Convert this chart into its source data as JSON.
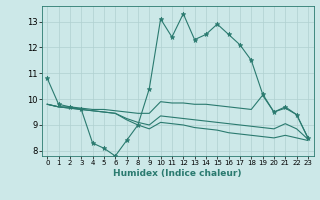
{
  "xlabel": "Humidex (Indice chaleur)",
  "ylabel": "",
  "bg_color": "#cce8e8",
  "line_color": "#2a7a6f",
  "grid_color": "#b0d0d0",
  "xlim": [
    -0.5,
    23.5
  ],
  "ylim": [
    7.8,
    13.6
  ],
  "yticks": [
    8,
    9,
    10,
    11,
    12,
    13
  ],
  "xticks": [
    0,
    1,
    2,
    3,
    4,
    5,
    6,
    7,
    8,
    9,
    10,
    11,
    12,
    13,
    14,
    15,
    16,
    17,
    18,
    19,
    20,
    21,
    22,
    23
  ],
  "lines": [
    {
      "x": [
        0,
        1,
        2,
        3,
        4,
        5,
        6,
        7,
        8,
        9,
        10,
        11,
        12,
        13,
        14,
        15,
        16,
        17,
        18,
        19,
        20,
        21,
        22,
        23
      ],
      "y": [
        10.8,
        9.8,
        9.7,
        9.6,
        8.3,
        8.1,
        7.8,
        8.4,
        9.0,
        10.4,
        13.1,
        12.4,
        13.3,
        12.3,
        12.5,
        12.9,
        12.5,
        12.1,
        11.5,
        10.2,
        9.5,
        9.7,
        9.4,
        8.5
      ],
      "marker": true
    },
    {
      "x": [
        0,
        1,
        2,
        3,
        4,
        5,
        6,
        7,
        8,
        9,
        10,
        11,
        12,
        13,
        14,
        15,
        16,
        17,
        18,
        19,
        20,
        21,
        22,
        23
      ],
      "y": [
        9.8,
        9.7,
        9.7,
        9.65,
        9.6,
        9.6,
        9.55,
        9.5,
        9.45,
        9.45,
        9.9,
        9.85,
        9.85,
        9.8,
        9.8,
        9.75,
        9.7,
        9.65,
        9.6,
        10.15,
        9.5,
        9.65,
        9.4,
        8.5
      ],
      "marker": false
    },
    {
      "x": [
        0,
        1,
        2,
        3,
        4,
        5,
        6,
        7,
        8,
        9,
        10,
        11,
        12,
        13,
        14,
        15,
        16,
        17,
        18,
        19,
        20,
        21,
        22,
        23
      ],
      "y": [
        9.8,
        9.7,
        9.65,
        9.6,
        9.55,
        9.5,
        9.45,
        9.25,
        9.1,
        9.0,
        9.35,
        9.3,
        9.25,
        9.2,
        9.15,
        9.1,
        9.05,
        9.0,
        8.95,
        8.9,
        8.85,
        9.05,
        8.85,
        8.45
      ],
      "marker": false
    },
    {
      "x": [
        0,
        1,
        2,
        3,
        4,
        5,
        6,
        7,
        8,
        9,
        10,
        11,
        12,
        13,
        14,
        15,
        16,
        17,
        18,
        19,
        20,
        21,
        22,
        23
      ],
      "y": [
        9.8,
        9.7,
        9.65,
        9.6,
        9.55,
        9.5,
        9.45,
        9.2,
        9.0,
        8.85,
        9.1,
        9.05,
        9.0,
        8.9,
        8.85,
        8.8,
        8.7,
        8.65,
        8.6,
        8.55,
        8.5,
        8.6,
        8.5,
        8.4
      ],
      "marker": false
    }
  ]
}
